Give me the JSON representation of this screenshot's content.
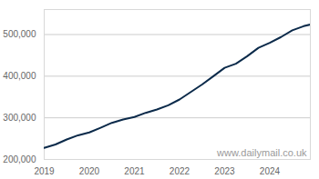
{
  "chart_data": {
    "type": "line",
    "x": [
      2019.0,
      2019.25,
      2019.5,
      2019.75,
      2020.0,
      2020.25,
      2020.5,
      2020.75,
      2021.0,
      2021.25,
      2021.5,
      2021.75,
      2022.0,
      2022.25,
      2022.5,
      2022.75,
      2023.0,
      2023.25,
      2023.5,
      2023.75,
      2024.0,
      2024.25,
      2024.5,
      2024.75,
      2024.9
    ],
    "values": [
      228000,
      236000,
      248000,
      258000,
      265000,
      276000,
      288000,
      296000,
      302000,
      312000,
      320000,
      330000,
      344000,
      362000,
      380000,
      400000,
      420000,
      430000,
      448000,
      468000,
      480000,
      494000,
      510000,
      520000,
      524000
    ],
    "color": "#0b2a4a",
    "xlim": [
      2019,
      2024.9
    ],
    "xticks": [
      2019,
      2020,
      2021,
      2022,
      2023,
      2024
    ],
    "ylim": [
      200000,
      560000
    ],
    "yticks": [
      {
        "value": 200000,
        "label": "200,000"
      },
      {
        "value": 300000,
        "label": "300,000"
      },
      {
        "value": 400000,
        "label": "400,000"
      },
      {
        "value": 500000,
        "label": "500,000"
      }
    ],
    "grid": true,
    "annotations": [
      "www.dailymail.co.uk"
    ]
  }
}
